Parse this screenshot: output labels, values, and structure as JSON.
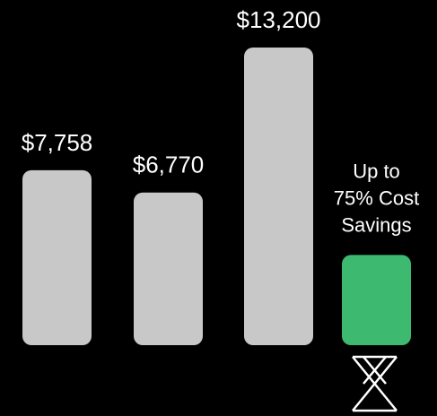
{
  "chart_data": {
    "type": "bar",
    "values": [
      7758,
      6770,
      13200,
      4000
    ],
    "value_labels": [
      "$7,758",
      "$6,770",
      "$13,200",
      null
    ],
    "colors": [
      "#c8c8c8",
      "#c8c8c8",
      "#c8c8c8",
      "#3dba6f"
    ],
    "ylim": [
      0,
      13200
    ],
    "annotation": [
      "Up to",
      "75% Cost",
      "Savings"
    ]
  }
}
